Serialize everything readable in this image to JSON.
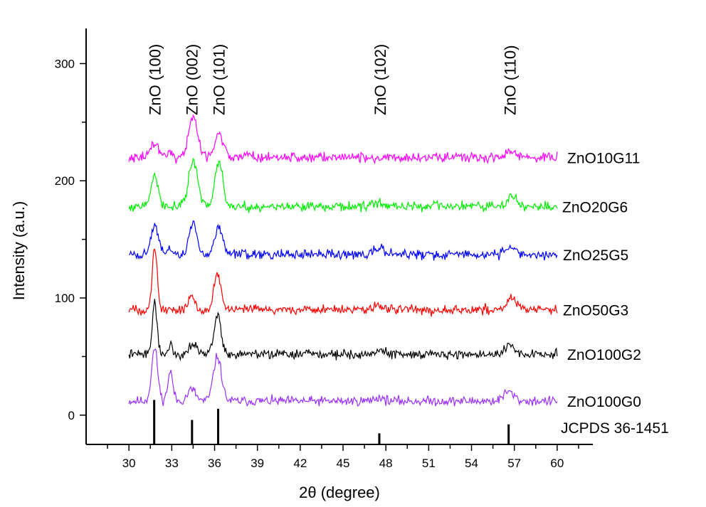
{
  "chart_data": {
    "type": "line",
    "xlabel": "2θ (degree)",
    "ylabel": "Intensity (a.u.)",
    "xlim": [
      27,
      62.5
    ],
    "ylim": [
      -25,
      330
    ],
    "xticks": [
      30,
      33,
      36,
      39,
      42,
      45,
      48,
      51,
      54,
      57,
      60
    ],
    "yticks": [
      0,
      100,
      200,
      300
    ],
    "grid": false,
    "series": [
      {
        "name": "ZnO100G0",
        "color": "#9b30ff",
        "baseline": 12,
        "peaks": [
          [
            31.8,
            45,
            0.3
          ],
          [
            32.9,
            25,
            0.25
          ],
          [
            34.4,
            10,
            0.4
          ],
          [
            36.2,
            38,
            0.4
          ],
          [
            47.5,
            3,
            0.5
          ],
          [
            56.6,
            8,
            0.5
          ]
        ],
        "noise": 4,
        "seed": 11
      },
      {
        "name": "ZnO100G2",
        "color": "#000000",
        "baseline": 52,
        "peaks": [
          [
            31.8,
            42,
            0.25
          ],
          [
            32.9,
            8,
            0.2
          ],
          [
            34.5,
            10,
            0.4
          ],
          [
            36.2,
            33,
            0.35
          ],
          [
            47.6,
            3,
            0.5
          ],
          [
            56.7,
            6,
            0.5
          ]
        ],
        "noise": 4,
        "seed": 22
      },
      {
        "name": "ZnO50G3",
        "color": "#ff0000",
        "baseline": 90,
        "peaks": [
          [
            31.8,
            52,
            0.25
          ],
          [
            34.4,
            12,
            0.3
          ],
          [
            36.2,
            30,
            0.35
          ],
          [
            47.6,
            3,
            0.5
          ],
          [
            56.8,
            10,
            0.5
          ]
        ],
        "noise": 4,
        "seed": 33
      },
      {
        "name": "ZnO25G5",
        "color": "#0000ff",
        "baseline": 137,
        "peaks": [
          [
            31.8,
            25,
            0.35
          ],
          [
            32.9,
            6,
            0.2
          ],
          [
            34.5,
            28,
            0.35
          ],
          [
            36.3,
            24,
            0.4
          ],
          [
            47.6,
            5,
            0.6
          ],
          [
            56.7,
            7,
            0.5
          ]
        ],
        "noise": 4,
        "seed": 44
      },
      {
        "name": "ZnO20G6",
        "color": "#00ee00",
        "baseline": 178,
        "peaks": [
          [
            31.8,
            28,
            0.35
          ],
          [
            34.5,
            38,
            0.45
          ],
          [
            36.3,
            38,
            0.4
          ],
          [
            47.5,
            3,
            0.6
          ],
          [
            56.8,
            9,
            0.5
          ]
        ],
        "noise": 4,
        "seed": 55
      },
      {
        "name": "ZnO10G11",
        "color": "#ff00ff",
        "baseline": 220,
        "peaks": [
          [
            31.8,
            12,
            0.4
          ],
          [
            32.9,
            6,
            0.2
          ],
          [
            34.5,
            35,
            0.45
          ],
          [
            36.3,
            20,
            0.45
          ],
          [
            38.4,
            3,
            0.2
          ],
          [
            56.8,
            4,
            0.5
          ]
        ],
        "noise": 4,
        "seed": 66
      }
    ],
    "reference": {
      "name": "JCPDS 36-1451",
      "bars": [
        [
          31.77,
          100
        ],
        [
          34.42,
          55
        ],
        [
          36.25,
          80
        ],
        [
          47.54,
          25
        ],
        [
          56.6,
          45
        ]
      ]
    },
    "peak_labels": [
      {
        "text": "ZnO (100)",
        "x": 31.8
      },
      {
        "text": "ZnO (002)",
        "x": 34.4
      },
      {
        "text": "ZnO (101)",
        "x": 36.3
      },
      {
        "text": "ZnO (102)",
        "x": 47.6
      },
      {
        "text": "ZnO (110)",
        "x": 56.7
      }
    ]
  }
}
